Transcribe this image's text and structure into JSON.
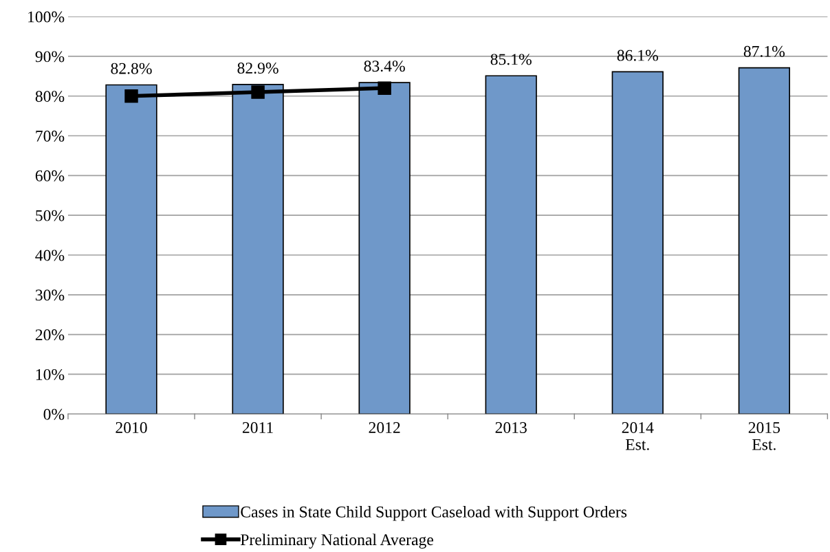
{
  "chart_data": {
    "type": "bar",
    "categories": [
      "2010",
      "2011",
      "2012",
      "2013",
      "2014\nEst.",
      "2015\nEst."
    ],
    "series": [
      {
        "name": "Cases in State Child Support Caseload with Support Orders",
        "color": "#6f98c9",
        "values": [
          82.8,
          82.9,
          83.4,
          85.1,
          86.1,
          87.1
        ],
        "value_labels": [
          "82.8%",
          "82.9%",
          "83.4%",
          "85.1%",
          "86.1%",
          "87.1%"
        ]
      },
      {
        "name": "Preliminary National Average",
        "type": "line",
        "color": "#000000",
        "marker": "square",
        "values": [
          80,
          81,
          82,
          null,
          null,
          null
        ]
      }
    ],
    "ylim": [
      0,
      100
    ],
    "yticks": [
      {
        "value": 0,
        "label": "0%"
      },
      {
        "value": 10,
        "label": "10%"
      },
      {
        "value": 20,
        "label": "20%"
      },
      {
        "value": 30,
        "label": "30%"
      },
      {
        "value": 40,
        "label": "40%"
      },
      {
        "value": 50,
        "label": "50%"
      },
      {
        "value": 60,
        "label": "60%"
      },
      {
        "value": 70,
        "label": "70%"
      },
      {
        "value": 80,
        "label": "80%"
      },
      {
        "value": 90,
        "label": "90%"
      },
      {
        "value": 100,
        "label": "100%"
      }
    ],
    "grid": "y",
    "legend": "bottom"
  }
}
